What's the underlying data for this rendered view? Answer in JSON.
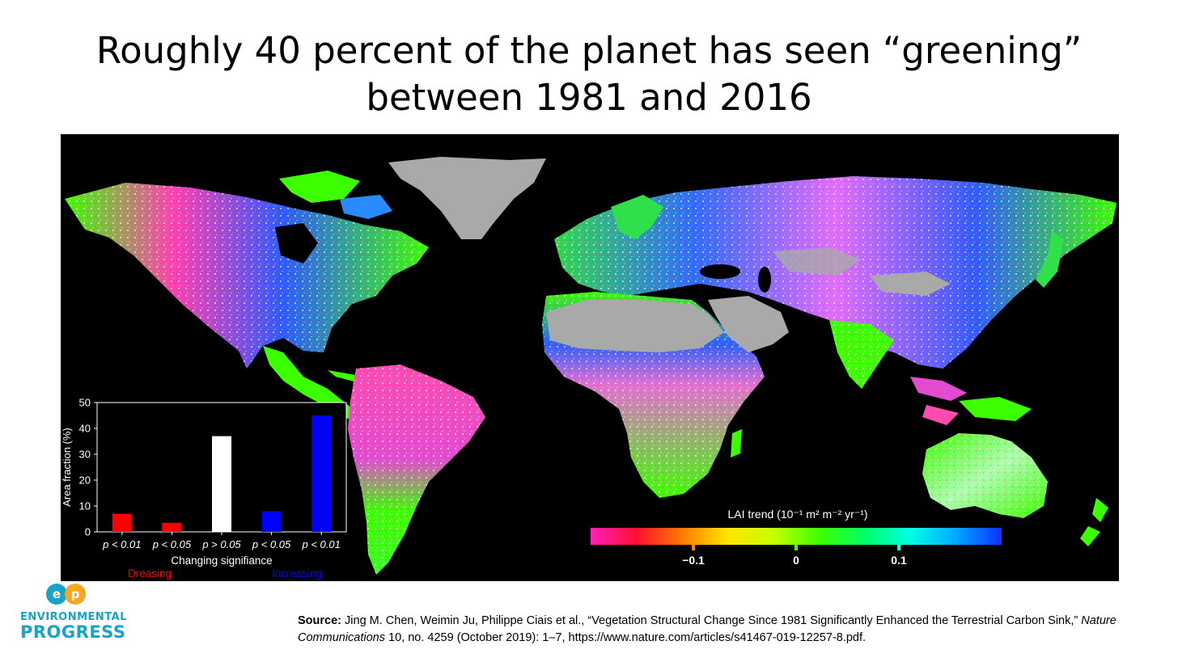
{
  "title": {
    "line1": "Roughly 40 percent of the planet has seen “greening”",
    "line2": "between 1981 and 2016"
  },
  "map": {
    "colorbar": {
      "label": "LAI trend (10⁻¹ m² m⁻² yr⁻¹)",
      "ticks": [
        "−0.1",
        "0",
        "0.1"
      ],
      "colors": [
        "#ff1fb8",
        "#ff1030",
        "#ff7a00",
        "#ffe600",
        "#c6ff00",
        "#3cff00",
        "#00ff66",
        "#00ffe6",
        "#00a8ff",
        "#1030ff"
      ]
    }
  },
  "chart_data": {
    "type": "bar",
    "categories": [
      "p < 0.01",
      "p < 0.05",
      "p > 0.05",
      "p < 0.05",
      "p < 0.01"
    ],
    "values": [
      7,
      3.5,
      37,
      8,
      45
    ],
    "colors": [
      "#ff0000",
      "#ff0000",
      "#ffffff",
      "#0000ff",
      "#0000ff"
    ],
    "xlabel": "Changing signifiance",
    "ylabel": "Area fraction (%)",
    "ylim": [
      0,
      50
    ],
    "yticks": [
      "0",
      "10",
      "20",
      "30",
      "40",
      "50"
    ],
    "group_labels": [
      {
        "text": "Dreasing",
        "color": "#ff0000"
      },
      {
        "text": "Increasing",
        "color": "#0000ff"
      }
    ]
  },
  "logo": {
    "line1": "ENVIRONMENTAL",
    "line2": "PROGRESS",
    "mark": "ep"
  },
  "source": {
    "prefix": "Source:",
    "text1": "Jing M. Chen, Weimin Ju, Philippe Ciais et al., “Vegetation Structural Change Since 1981 Significantly Enhanced the Terrestrial Carbon Sink,”",
    "journal": "Nature Communications",
    "text2": "10, no. 4259 (October 2019): 1–7, https://www.nature.com/articles/s41467-019-12257-8.pdf."
  }
}
